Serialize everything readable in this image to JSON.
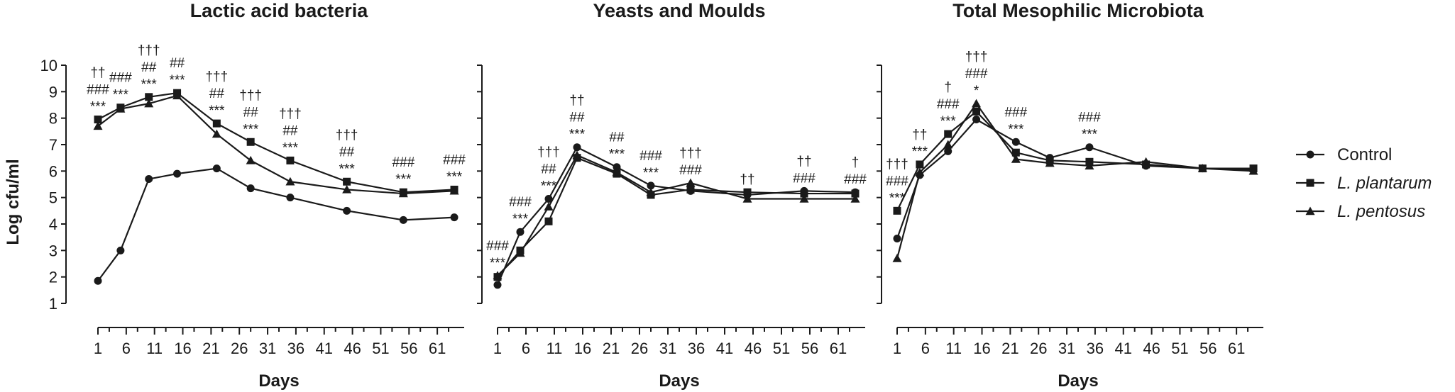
{
  "shared": {
    "ylabel": "Log cfu/ml",
    "ylim": [
      1,
      10
    ],
    "yticks": [
      1,
      2,
      3,
      4,
      5,
      6,
      7,
      8,
      9,
      10
    ],
    "xlabel": "Days",
    "xlim": [
      1,
      65
    ],
    "xticks": [
      1,
      6,
      11,
      16,
      21,
      26,
      31,
      36,
      41,
      46,
      51,
      56,
      61
    ],
    "series_styles": [
      {
        "name": "Control",
        "marker": "circle",
        "color": "#1a1a1a",
        "italic": false
      },
      {
        "name": "L. plantarum",
        "marker": "square",
        "color": "#1a1a1a",
        "italic": true
      },
      {
        "name": "L. pentosus",
        "marker": "triangle",
        "color": "#1a1a1a",
        "italic": true
      }
    ],
    "legend_placement": "right",
    "grid": false
  },
  "chart_data": [
    {
      "type": "line",
      "title": "Lactic acid bacteria",
      "xlabel": "Days",
      "ylabel": "Log cfu/ml",
      "ylim": [
        1,
        10
      ],
      "x": [
        1,
        5,
        10,
        15,
        22,
        28,
        35,
        45,
        55,
        64
      ],
      "series": [
        {
          "name": "Control",
          "values": [
            1.85,
            3.0,
            5.7,
            5.9,
            6.1,
            5.35,
            5.0,
            4.5,
            4.15,
            4.25
          ]
        },
        {
          "name": "L. plantarum",
          "values": [
            7.95,
            8.4,
            8.8,
            8.95,
            7.8,
            7.1,
            6.4,
            5.6,
            5.2,
            5.3
          ]
        },
        {
          "name": "L. pentosus",
          "values": [
            7.7,
            8.35,
            8.55,
            8.85,
            7.4,
            6.4,
            5.6,
            5.3,
            5.15,
            5.25
          ]
        }
      ],
      "annotations": [
        {
          "x": 1,
          "lines": [
            "††",
            "###",
            "***"
          ]
        },
        {
          "x": 5,
          "lines": [
            "###",
            "***"
          ]
        },
        {
          "x": 10,
          "lines": [
            "†††",
            "##",
            "***"
          ]
        },
        {
          "x": 15,
          "lines": [
            "##",
            "***"
          ]
        },
        {
          "x": 22,
          "lines": [
            "†††",
            "##",
            "***"
          ]
        },
        {
          "x": 28,
          "lines": [
            "†††",
            "##",
            "***"
          ]
        },
        {
          "x": 35,
          "lines": [
            "†††",
            "##",
            "***"
          ]
        },
        {
          "x": 45,
          "lines": [
            "†††",
            "##",
            "***"
          ]
        },
        {
          "x": 55,
          "lines": [
            "###",
            "***"
          ]
        },
        {
          "x": 64,
          "lines": [
            "###",
            "***"
          ]
        }
      ]
    },
    {
      "type": "line",
      "title": "Yeasts and Moulds",
      "xlabel": "Days",
      "ylim": [
        1,
        10
      ],
      "x": [
        1,
        5,
        10,
        15,
        22,
        28,
        35,
        45,
        55,
        64
      ],
      "series": [
        {
          "name": "Control",
          "values": [
            1.7,
            3.7,
            4.95,
            6.9,
            6.15,
            5.45,
            5.25,
            5.1,
            5.25,
            5.2
          ]
        },
        {
          "name": "L. plantarum",
          "values": [
            2.0,
            3.0,
            4.1,
            6.5,
            5.9,
            5.1,
            5.3,
            5.2,
            5.15,
            5.15
          ]
        },
        {
          "name": "L. pentosus",
          "values": [
            2.05,
            2.9,
            4.65,
            6.6,
            5.95,
            5.2,
            5.55,
            4.95,
            4.95,
            4.95
          ]
        }
      ],
      "annotations": [
        {
          "x": 1,
          "lines": [
            "###",
            "***"
          ]
        },
        {
          "x": 5,
          "lines": [
            "###",
            "***"
          ]
        },
        {
          "x": 10,
          "lines": [
            "†††",
            "##",
            "***"
          ]
        },
        {
          "x": 15,
          "lines": [
            "††",
            "##",
            "***"
          ]
        },
        {
          "x": 22,
          "lines": [
            "##",
            "***"
          ]
        },
        {
          "x": 28,
          "lines": [
            "###",
            "***"
          ]
        },
        {
          "x": 35,
          "lines": [
            "†††",
            "###"
          ]
        },
        {
          "x": 45,
          "lines": [
            "††"
          ]
        },
        {
          "x": 55,
          "lines": [
            "††",
            "###"
          ]
        },
        {
          "x": 64,
          "lines": [
            "†",
            "###"
          ]
        }
      ]
    },
    {
      "type": "line",
      "title": "Total Mesophilic Microbiota",
      "xlabel": "Days",
      "ylim": [
        1,
        10
      ],
      "x": [
        1,
        5,
        10,
        15,
        22,
        28,
        35,
        45,
        55,
        64
      ],
      "series": [
        {
          "name": "Control",
          "values": [
            3.45,
            5.85,
            6.75,
            7.95,
            7.1,
            6.5,
            6.9,
            6.2,
            6.1,
            6.05
          ]
        },
        {
          "name": "L. plantarum",
          "values": [
            4.5,
            6.25,
            7.4,
            8.25,
            6.7,
            6.4,
            6.35,
            6.25,
            6.1,
            6.1
          ]
        },
        {
          "name": "L. pentosus",
          "values": [
            2.7,
            5.95,
            7.0,
            8.55,
            6.45,
            6.3,
            6.2,
            6.35,
            6.1,
            6.0
          ]
        }
      ],
      "annotations": [
        {
          "x": 1,
          "lines": [
            "†††",
            "###",
            "***"
          ]
        },
        {
          "x": 5,
          "lines": [
            "††",
            "***"
          ]
        },
        {
          "x": 10,
          "lines": [
            "†",
            "###",
            "***"
          ]
        },
        {
          "x": 15,
          "lines": [
            "†††",
            "###",
            "*"
          ]
        },
        {
          "x": 22,
          "lines": [
            "###",
            "***"
          ]
        },
        {
          "x": 35,
          "lines": [
            "###",
            "***"
          ]
        }
      ]
    }
  ]
}
